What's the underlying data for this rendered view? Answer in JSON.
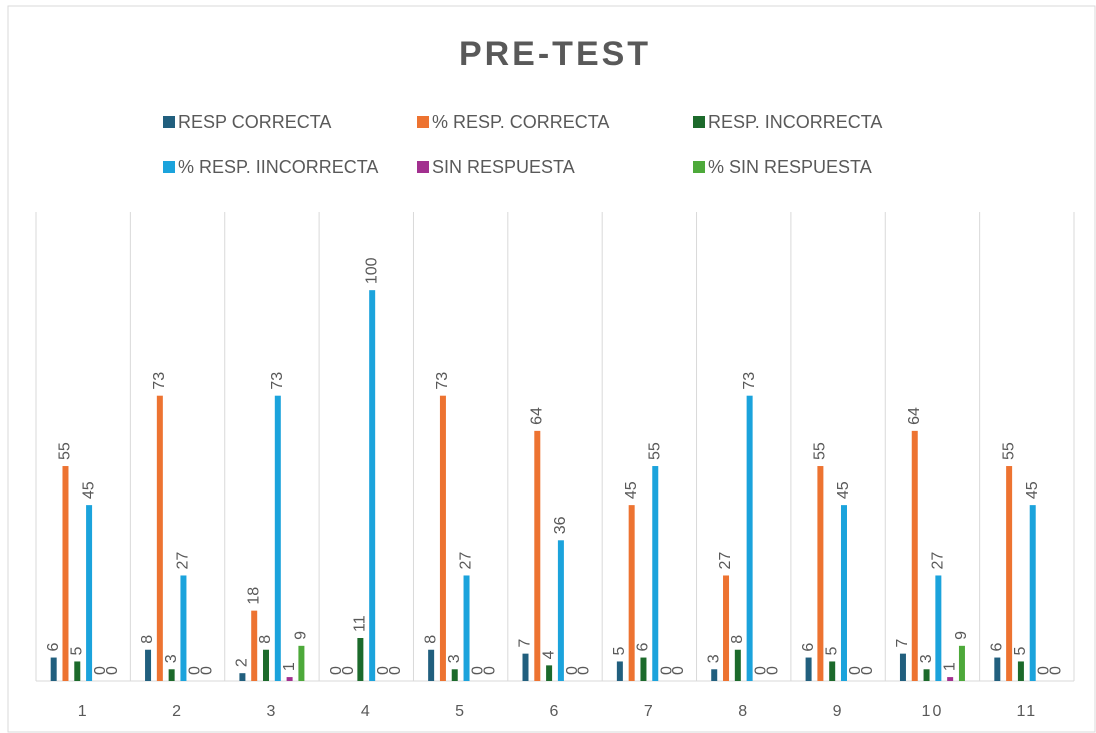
{
  "chart_data": {
    "type": "bar",
    "title": "PRE-TEST",
    "categories": [
      "1",
      "2",
      "3",
      "4",
      "5",
      "6",
      "7",
      "8",
      "9",
      "10",
      "11"
    ],
    "series": [
      {
        "name": "RESP CORRECTA",
        "color": "#215f7e",
        "values": [
          6,
          8,
          2,
          0,
          8,
          7,
          5,
          3,
          6,
          7,
          6
        ]
      },
      {
        "name": "% RESP. CORRECTA",
        "color": "#ed7331",
        "values": [
          55,
          73,
          18,
          0,
          73,
          64,
          45,
          27,
          55,
          64,
          55
        ]
      },
      {
        "name": "RESP. INCORRECTA",
        "color": "#1c6a2b",
        "values": [
          5,
          3,
          8,
          11,
          3,
          4,
          6,
          8,
          5,
          3,
          5
        ]
      },
      {
        "name": "% RESP. IINCORRECTA",
        "color": "#1ba3dc",
        "values": [
          45,
          27,
          73,
          100,
          27,
          36,
          55,
          73,
          45,
          27,
          45
        ]
      },
      {
        "name": "SIN RESPUESTA",
        "color": "#a2308f",
        "values": [
          0,
          0,
          1,
          0,
          0,
          0,
          0,
          0,
          0,
          1,
          0
        ]
      },
      {
        "name": "% SIN RESPUESTA",
        "color": "#4da93a",
        "values": [
          0,
          0,
          9,
          0,
          0,
          0,
          0,
          0,
          0,
          9,
          0
        ]
      }
    ],
    "ylim": [
      0,
      120
    ],
    "grid": true,
    "legend": "top"
  }
}
